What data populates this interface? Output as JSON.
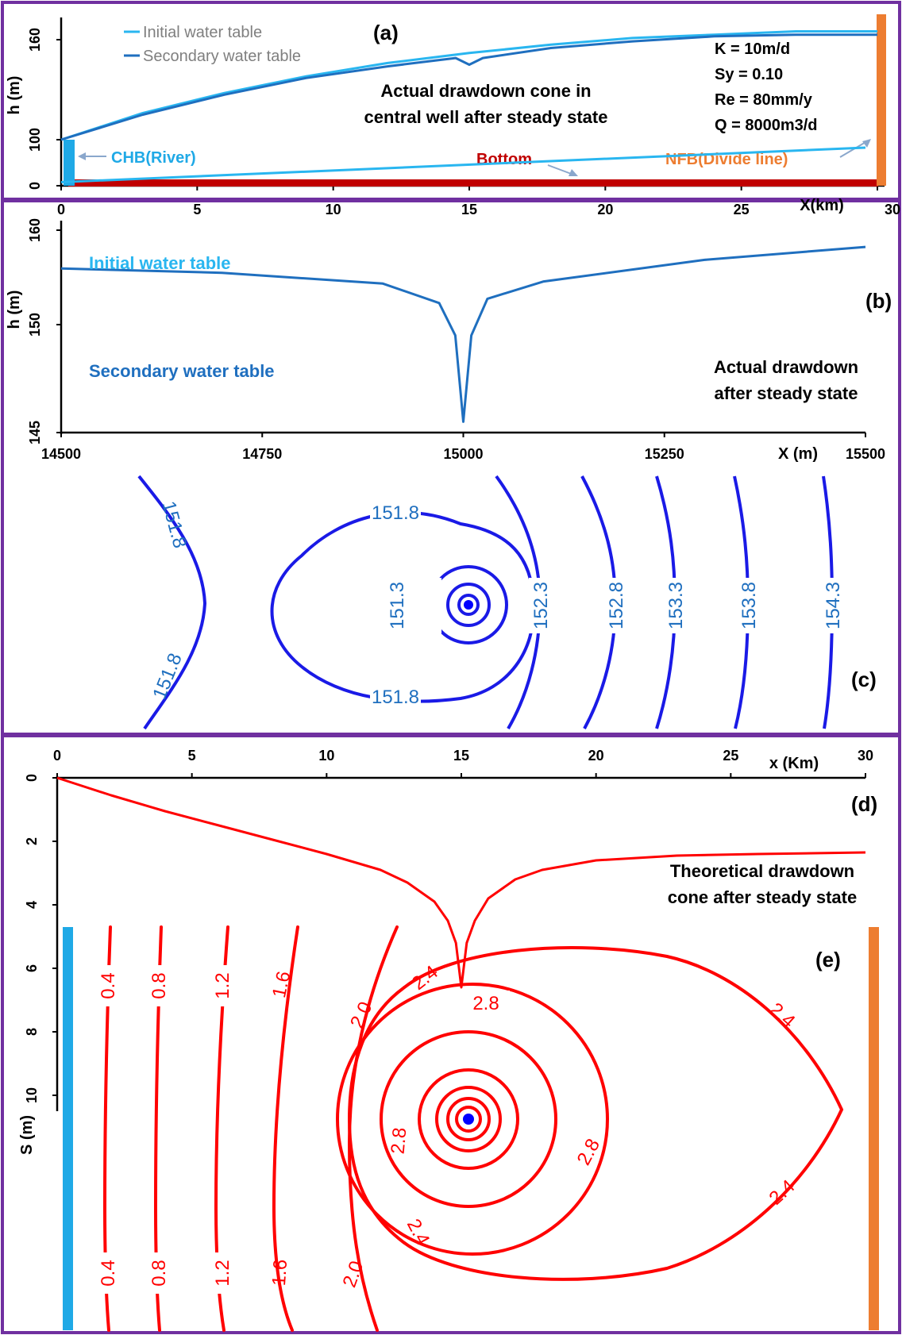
{
  "colors": {
    "frame": "#7030a0",
    "initial": "#29b6f0",
    "secondary": "#1f6fbf",
    "river": "#1fa9e6",
    "bottom": "#c00000",
    "divide": "#ed7d31",
    "contour_blue": "#1a1ae6",
    "label_blue": "#1f6fbf",
    "red": "#ff0000",
    "well": "#0000ff"
  },
  "chart_data": [
    {
      "id": "a",
      "type": "line",
      "panel_label": "(a)",
      "xlabel": "X(km)",
      "ylabel": "h (m)",
      "x_ticks": [
        "0",
        "5",
        "10",
        "15",
        "20",
        "25",
        "30"
      ],
      "y_ticks": [
        "0",
        "100",
        "160"
      ],
      "xlim": [
        0,
        30
      ],
      "series": [
        {
          "name": "Initial water table",
          "x": [
            0,
            3,
            6,
            9,
            12,
            15,
            18,
            21,
            24,
            27,
            30
          ],
          "y": [
            100,
            116,
            128,
            138,
            146,
            152,
            157,
            161,
            163,
            165,
            165
          ]
        },
        {
          "name": "Secondary water table",
          "x": [
            0,
            3,
            6,
            9,
            12,
            14.5,
            15,
            15.5,
            18,
            21,
            24,
            27,
            30
          ],
          "y": [
            100,
            115,
            127,
            137,
            144,
            149,
            145,
            149,
            155,
            159,
            162,
            163,
            163
          ]
        }
      ],
      "params": [
        "K = 10m/d",
        "Sy = 0.10",
        "Re = 80mm/y",
        "Q = 8000m3/d"
      ],
      "annotations": {
        "cone": [
          "Actual drawdown cone in",
          "central well after steady state"
        ],
        "river": "CHB(River)",
        "bottom": "Bottom",
        "divide": "NFB(Divide line)"
      }
    },
    {
      "id": "b",
      "type": "line",
      "panel_label": "(b)",
      "xlabel": "X (m)",
      "ylabel": "h (m)",
      "x_ticks": [
        "14500",
        "14750",
        "15000",
        "15250",
        "15500"
      ],
      "y_ticks": [
        "145",
        "150",
        "160"
      ],
      "xlim": [
        14500,
        15500
      ],
      "series": [
        {
          "name": "Initial water table",
          "x": [
            14500,
            15500
          ],
          "y": [
            156.6,
            158.2
          ]
        },
        {
          "name": "Secondary water table",
          "x": [
            14500,
            14700,
            14900,
            14970,
            14990,
            15000,
            15010,
            15030,
            15100,
            15300,
            15500
          ],
          "y": [
            152.6,
            152.4,
            151.9,
            151.0,
            149.5,
            145.5,
            149.5,
            151.2,
            152.0,
            153.0,
            153.6
          ]
        }
      ],
      "annotations": {
        "note": [
          "Actual drawdown",
          "after steady state"
        ]
      }
    },
    {
      "id": "c",
      "type": "contour",
      "panel_label": "(c)",
      "contour_levels": [
        151.3,
        151.8,
        152.3,
        152.8,
        153.3,
        153.8,
        154.3
      ],
      "labels": [
        "151.8",
        "151.8",
        "151.8",
        "151.8",
        "151.3",
        "152.3",
        "152.8",
        "153.3",
        "153.8",
        "154.3"
      ]
    },
    {
      "id": "d",
      "type": "line",
      "panel_label": "(d)",
      "xlabel": "x (Km)",
      "ylabel": "S (m)",
      "x_ticks": [
        "0",
        "5",
        "10",
        "15",
        "20",
        "25",
        "30"
      ],
      "y_ticks": [
        "0",
        "2",
        "4",
        "6",
        "8",
        "10"
      ],
      "xlim": [
        0,
        30
      ],
      "ylim": [
        0,
        10
      ],
      "series": [
        {
          "x": [
            0,
            2,
            4,
            6,
            8,
            10,
            12,
            13,
            14,
            14.5,
            14.8,
            15,
            15.2,
            15.5,
            16,
            17,
            18,
            20,
            23,
            26,
            30
          ],
          "y": [
            0,
            0.55,
            1.05,
            1.5,
            1.95,
            2.4,
            2.9,
            3.3,
            3.9,
            4.5,
            5.2,
            6.6,
            5.2,
            4.5,
            3.8,
            3.2,
            2.9,
            2.6,
            2.45,
            2.4,
            2.35
          ]
        }
      ],
      "annotations": {
        "note": [
          "Theoretical drawdown",
          "cone after steady state"
        ]
      }
    },
    {
      "id": "e",
      "type": "contour",
      "panel_label": "(e)",
      "contour_levels": [
        0.4,
        0.8,
        1.2,
        1.6,
        2.0,
        2.4,
        2.8
      ],
      "labels": [
        "0.4",
        "0.8",
        "1.2",
        "1.6",
        "2.0",
        "2.4",
        "2.4",
        "2.8",
        "2.8",
        "2.8",
        "0.4",
        "0.8",
        "1.2",
        "1.6",
        "2.0",
        "2.4",
        "2.4"
      ]
    }
  ]
}
